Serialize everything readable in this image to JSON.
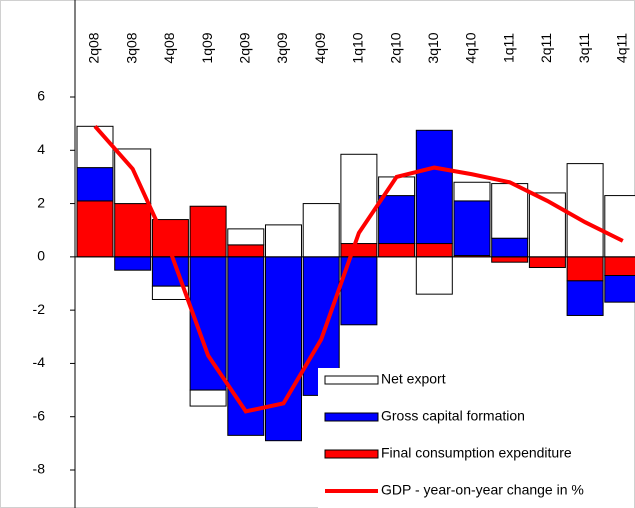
{
  "chart_data": {
    "type": "stacked_bar_line",
    "categories": [
      "2q08",
      "3q08",
      "4q08",
      "1q09",
      "2q09",
      "3q09",
      "4q09",
      "1q10",
      "2q10",
      "3q10",
      "4q10",
      "1q11",
      "2q11",
      "3q11",
      "4q11"
    ],
    "series": [
      {
        "name": "Net export",
        "color": "#ffffff",
        "values": [
          1.55,
          2.05,
          -0.5,
          -0.6,
          0.6,
          1.2,
          2.0,
          3.35,
          0.7,
          -1.4,
          0.7,
          2.05,
          2.4,
          3.5,
          2.3
        ]
      },
      {
        "name": "Gross capital formation",
        "color": "#0000ff",
        "values": [
          1.25,
          -0.5,
          -1.1,
          -5.0,
          -6.7,
          -6.9,
          -5.2,
          -2.55,
          1.8,
          4.25,
          2.05,
          0.7,
          0,
          -1.3,
          -1.0
        ]
      },
      {
        "name": "Final consumption expenditure",
        "color": "#ff0000",
        "values": [
          2.1,
          2.0,
          1.4,
          1.9,
          0.45,
          0,
          0,
          0.5,
          0.5,
          0.5,
          0.05,
          -0.2,
          -0.4,
          -0.9,
          -0.7
        ]
      },
      {
        "name": "GDP - year-on-year change in %",
        "color": "#ff0000",
        "type": "line",
        "values": [
          4.9,
          3.3,
          0.2,
          -3.7,
          -5.8,
          -5.5,
          -3.1,
          0.9,
          3.0,
          3.35,
          3.1,
          2.8,
          2.1,
          1.3,
          0.6
        ]
      }
    ],
    "ylim": [
      -8,
      6
    ],
    "yticks": [
      -8,
      -6,
      -4,
      -2,
      0,
      2,
      4,
      6
    ]
  }
}
